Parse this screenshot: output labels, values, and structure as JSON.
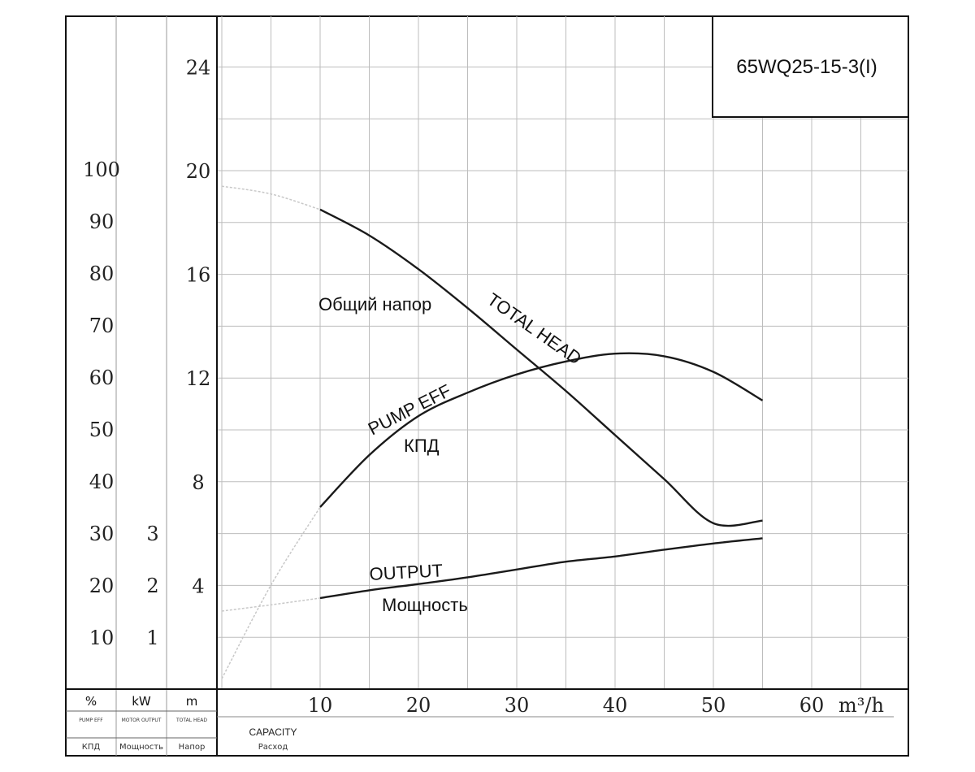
{
  "model": "65WQ25-15-3(I)",
  "units": {
    "eff": {
      "symbol": "%",
      "en": "PUMP EFF",
      "ru": "КПД"
    },
    "power": {
      "symbol": "kW",
      "en": "MOTOR OUTPUT",
      "ru": "Мощность"
    },
    "head": {
      "symbol": "m",
      "en": "TOTAL HEAD",
      "ru": "Напор"
    },
    "flow": {
      "symbol": "m³/h",
      "en": "CAPACITY",
      "ru": "Расход"
    }
  },
  "curve_labels": {
    "head_ru": "Общий напор",
    "head_en": "TOTAL HEAD",
    "eff_en": "PUMP EFF",
    "eff_ru": "КПД",
    "power_en": "OUTPUT",
    "power_ru": "Мощность"
  },
  "chart_data": {
    "type": "line",
    "x_ticks": [
      10,
      20,
      30,
      40,
      50,
      60
    ],
    "xlim": [
      0,
      70
    ],
    "axes": {
      "eff_pct": {
        "ticks": [
          10,
          20,
          30,
          40,
          50,
          60,
          70,
          80,
          90,
          100
        ],
        "range": [
          0,
          100
        ]
      },
      "power_kw": {
        "ticks": [
          1,
          2,
          3
        ],
        "range": [
          0,
          5
        ]
      },
      "head_m": {
        "ticks": [
          4,
          8,
          12,
          16,
          20,
          24
        ],
        "range": [
          0,
          25
        ]
      }
    },
    "grid": true,
    "series": [
      {
        "name": "TOTAL HEAD",
        "axis": "head_m",
        "x": [
          0,
          5,
          10,
          15,
          20,
          25,
          30,
          35,
          40,
          45,
          50,
          55
        ],
        "y": [
          19.4,
          19.1,
          18.5,
          17.5,
          16.2,
          14.7,
          13.1,
          11.5,
          9.8,
          8.1,
          6.4,
          6.5
        ],
        "dashed_before_x": 10
      },
      {
        "name": "PUMP EFF",
        "axis": "eff_pct",
        "x": [
          0,
          5,
          10,
          15,
          20,
          25,
          30,
          35,
          40,
          45,
          50,
          55
        ],
        "y": [
          2,
          20,
          35,
          45,
          52.5,
          57,
          60.5,
          63,
          64.5,
          64,
          61,
          55.5
        ],
        "dashed_before_x": 10
      },
      {
        "name": "OUTPUT",
        "axis": "power_kw",
        "x": [
          0,
          5,
          10,
          15,
          20,
          25,
          30,
          35,
          40,
          45,
          50,
          55
        ],
        "y": [
          1.5,
          1.62,
          1.75,
          1.9,
          2.02,
          2.15,
          2.3,
          2.45,
          2.55,
          2.68,
          2.8,
          2.9
        ],
        "dashed_before_x": 10
      }
    ]
  }
}
